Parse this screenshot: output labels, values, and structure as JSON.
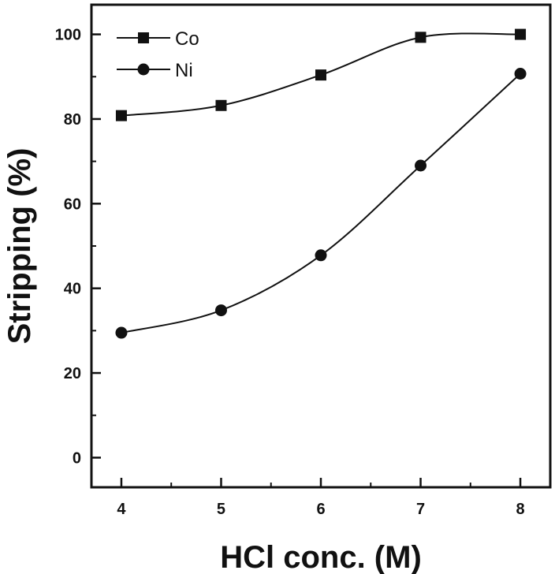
{
  "chart_data": {
    "type": "line",
    "title": "",
    "xlabel": "HCl conc. (M)",
    "ylabel": "Stripping (%)",
    "xlim": [
      3.7,
      8.3
    ],
    "ylim": [
      -7,
      107
    ],
    "x": [
      4,
      5,
      6,
      7,
      8
    ],
    "x_ticks": [
      "4",
      "5",
      "6",
      "7",
      "8"
    ],
    "y_ticks": [
      "0",
      "20",
      "40",
      "60",
      "80",
      "100"
    ],
    "grid": false,
    "legend_position": "top-left",
    "series": [
      {
        "name": "Co",
        "marker": "square",
        "values": [
          80.8,
          83.2,
          90.4,
          99.3,
          100.0
        ]
      },
      {
        "name": "Ni",
        "marker": "circle",
        "values": [
          29.5,
          34.8,
          47.8,
          69.0,
          90.7
        ]
      }
    ]
  }
}
